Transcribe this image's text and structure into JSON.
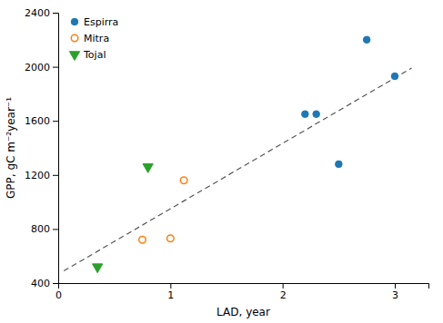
{
  "chart_data": {
    "type": "scatter",
    "xlabel": "LAD, year",
    "ylabel": "GPP, gC m⁻²year⁻¹",
    "xlim": [
      0,
      3.3
    ],
    "ylim": [
      400,
      2400
    ],
    "xticks": [
      0,
      1,
      2,
      3
    ],
    "yticks": [
      400,
      800,
      1200,
      1600,
      2000,
      2400
    ],
    "legend": "upper left",
    "series": [
      {
        "type": "line",
        "line_style": "dashed",
        "color": "#555555",
        "x": [
          0.05,
          3.15
        ],
        "values": [
          490,
          1990
        ]
      },
      {
        "name": "Espirra",
        "marker": "circle",
        "x": [
          2.2,
          2.3,
          2.5,
          2.75,
          3.0
        ],
        "values": [
          1650,
          1650,
          1280,
          2200,
          1930
        ]
      },
      {
        "name": "Mitra",
        "marker": "open-circle",
        "x": [
          0.75,
          1.0,
          1.12
        ],
        "values": [
          720,
          730,
          1160
        ]
      },
      {
        "name": "Tojal",
        "marker": "triangle-down",
        "x": [
          0.35,
          0.8
        ],
        "values": [
          520,
          1260
        ]
      }
    ]
  }
}
